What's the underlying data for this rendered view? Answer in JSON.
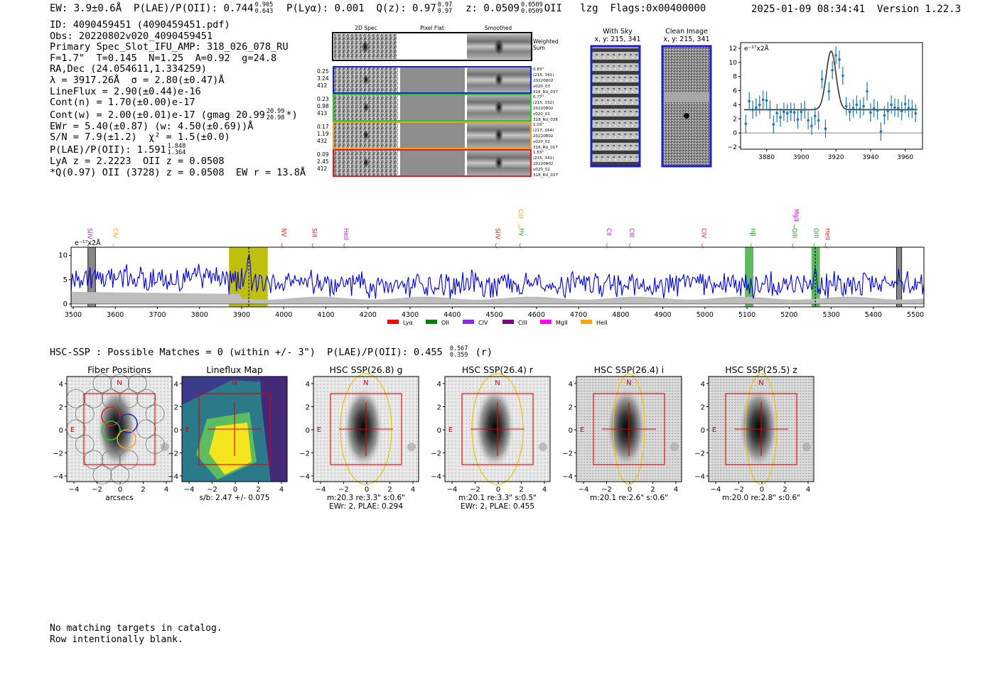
{
  "header": {
    "ew": "EW: 3.9±0.6Å",
    "plae_label": "P(LAE)/P(OII): 0.744",
    "plae_hi": "0.905",
    "plae_lo": "0.643",
    "plya": "P(Lyα): 0.001",
    "q_label": "Q(z): 0.97",
    "q_hi": "0.97",
    "q_lo": "0.97",
    "z_label": "z: 0.0509",
    "z_hi": "0.0509",
    "z_lo": "0.0509",
    "z_line": "OII",
    "algo": "lzg",
    "flags": "Flags:0x00400000",
    "datetime": "2025-01-09 08:34:41",
    "version": "Version 1.22.3"
  },
  "info": {
    "id": "ID: 4090459451 (4090459451.pdf)",
    "obs": "Obs: 20220802v020_4090459451",
    "primary": "Primary Spec_Slot_IFU_AMP: 318_026_078_RU",
    "fwhm": "F=1.7\"  T=0.145  N=1.25  A=0.92  g=24.8",
    "radec": "RA,Dec (24.054611,1.334259)",
    "lambda": "λ = 3917.26Å  σ = 2.80(±0.47)Å",
    "lineflux": "LineFlux = 2.90(±0.44)e-16",
    "contn": "Cont(n) = 1.70(±0.00)e-17",
    "contw": "Cont(w) = 2.00(±0.01)e-17 (gmag 20.99",
    "contw_hi": "20.99",
    "contw_lo": "20.98",
    "contw_end": "*)",
    "ewr": "EWr = 5.40(±0.87) (w: 4.50(±0.69))Å",
    "sn": "S/N = 7.9(±1.2)  χ² = 1.5(±0.0)",
    "plae2": "P(LAE)/P(OII): 1.591",
    "plae2_hi": "1.848",
    "plae2_lo": "1.364",
    "lya": "LyA z = 2.2223  OII z = 0.0508",
    "qline": "*Q(0.97) OII (3728) z = 0.0508  EW r = 13.8Å"
  },
  "cutouts": {
    "col_2d": "2D Spec",
    "col_flat": "Pixel Flat",
    "col_smooth": "Smoothed",
    "weighted": [
      "Weighted",
      "Sum"
    ],
    "rows": [
      {
        "color": "#1f1fd0",
        "left": [
          "0.25",
          "3.24",
          "412"
        ],
        "right": [
          "0.83\"",
          "(215, 341)",
          "20220802",
          "v020_03",
          "318_RU_037"
        ]
      },
      {
        "color": "#22cc22",
        "left": [
          "0.23",
          "0.98",
          "413"
        ],
        "right": [
          "0.77\"",
          "(215, 332)",
          "20220802",
          "v020_01",
          "318_RU_036"
        ]
      },
      {
        "color": "#f0a020",
        "left": [
          "0.17",
          "1.19",
          "432"
        ],
        "right": [
          "1.03\"",
          "(217, 164)",
          "20220802",
          "v020_02",
          "318_RU_017"
        ]
      },
      {
        "color": "#e02020",
        "left": [
          "0.09",
          "2.45",
          "412"
        ],
        "right": [
          "1.53\"",
          "(215, 341)",
          "20220802",
          "v020_02",
          "318_RU_037"
        ]
      }
    ],
    "with_sky": [
      "With Sky",
      "x, y: 215, 341"
    ],
    "clean": [
      "Clean Image",
      "x, y: 215, 341"
    ]
  },
  "zoom_chart": {
    "type": "scatter",
    "unit": "e⁻¹⁷x2Å",
    "xlim": [
      3865,
      3970
    ],
    "ylim": [
      -2.3,
      12.8
    ],
    "xticks": [
      3880,
      3900,
      3920,
      3940,
      3960
    ],
    "yticks": [
      -2,
      0,
      2,
      4,
      6,
      8,
      10,
      12
    ],
    "x": [
      3868,
      3870,
      3872,
      3874,
      3876,
      3878,
      3880,
      3882,
      3884,
      3886,
      3888,
      3890,
      3892,
      3894,
      3896,
      3898,
      3900,
      3902,
      3904,
      3906,
      3908,
      3910,
      3912,
      3914,
      3916,
      3918,
      3920,
      3922,
      3924,
      3926,
      3928,
      3930,
      3932,
      3934,
      3936,
      3938,
      3940,
      3942,
      3944,
      3946,
      3948,
      3950,
      3952,
      3954,
      3956,
      3958,
      3960,
      3962,
      3964,
      3966
    ],
    "y": [
      1.3,
      4.5,
      3.3,
      3.6,
      4.0,
      4.7,
      4.6,
      3.3,
      1.2,
      2.8,
      2.2,
      3.0,
      2.8,
      3.0,
      2.9,
      1.9,
      3.0,
      3.3,
      1.8,
      1.0,
      2.4,
      1.8,
      7.6,
      0.6,
      5.9,
      8.9,
      11.0,
      10.4,
      8.1,
      3.8,
      3.0,
      3.5,
      4.0,
      3.4,
      3.8,
      5.9,
      2.9,
      3.5,
      3.2,
      0.2,
      2.5,
      3.1,
      4.0,
      3.6,
      3.5,
      3.1,
      4.1,
      3.5,
      3.4,
      2.8
    ],
    "fit": {
      "continuum": 3.3,
      "amplitude": 8.3,
      "center": 3917.26,
      "sigma": 2.8
    }
  },
  "spectrum_chart": {
    "type": "line",
    "unit": "e⁻¹⁷x2Å",
    "xlim": [
      3495,
      5520
    ],
    "ylim": [
      -0.6,
      11.7
    ],
    "xticks": [
      3500,
      3600,
      3700,
      3800,
      3900,
      4000,
      4100,
      4200,
      4300,
      4400,
      4500,
      4600,
      4700,
      4800,
      4900,
      5000,
      5100,
      5200,
      5300,
      5400,
      5500
    ],
    "yticks": [
      0,
      5,
      10
    ],
    "highlight_bands": [
      {
        "x0": 3870,
        "x1": 3962,
        "color": "#bcbc00"
      },
      {
        "x0": 5095,
        "x1": 5115,
        "color": "#38a838"
      },
      {
        "x0": 5253,
        "x1": 5273,
        "color": "#38a838"
      }
    ],
    "masked_bands": [
      [
        3535,
        3553
      ],
      [
        5455,
        5467
      ]
    ],
    "dashed_lines": [
      3917,
      5262
    ],
    "line_labels": [
      {
        "label": "SiIV",
        "x": 3535,
        "color": "#9a30d0"
      },
      {
        "label": "CIV",
        "x": 3595,
        "color": "#f0a020"
      },
      {
        "label": "NV",
        "x": 3995,
        "color": "#e02020"
      },
      {
        "label": "SiII",
        "x": 4068,
        "color": "#e02020"
      },
      {
        "label": "HeII",
        "x": 4143,
        "color": "#9a30d0"
      },
      {
        "label": "SiIV",
        "x": 4503,
        "color": "#e02020"
      },
      {
        "label": "CIII",
        "x": 4558,
        "color": "#f0a020"
      },
      {
        "label": "Hγ",
        "x": 4560,
        "color": "#2a9a2a"
      },
      {
        "label": "CII",
        "x": 4767,
        "color": "#9a30d0"
      },
      {
        "label": "CIII",
        "x": 4821,
        "color": "#9a30d0"
      },
      {
        "label": "MgII",
        "x": 5212,
        "color": "#ff00ff"
      },
      {
        "label": "CIV",
        "x": 4993,
        "color": "#e02020"
      },
      {
        "label": "Hβ",
        "x": 5109,
        "color": "#2a9a2a"
      },
      {
        "label": "OIII",
        "x": 5208,
        "color": "#2a9a2a"
      },
      {
        "label": "OIII",
        "x": 5259,
        "color": "#2a9a2a"
      },
      {
        "label": "HeII",
        "x": 5286,
        "color": "#e02020"
      }
    ],
    "legend": [
      {
        "label": "Lyα",
        "color": "#ff0000"
      },
      {
        "label": "OII",
        "color": "#008000"
      },
      {
        "label": "CIV",
        "color": "#8a2be2"
      },
      {
        "label": "CIII",
        "color": "#800080"
      },
      {
        "label": "MgII",
        "color": "#ff00ff"
      },
      {
        "label": "HeII",
        "color": "#ffa500"
      }
    ]
  },
  "hsc": {
    "title": "HSC-SSP : Possible Matches = 0 (within +/- 3\")  P(LAE)/P(OII): 0.455",
    "hi": "0.567",
    "lo": "0.359",
    "band": "(r)",
    "panels": [
      {
        "title": "Fiber Positions",
        "caption": [
          "arcsecs"
        ]
      },
      {
        "title": "Lineflux Map",
        "caption": [
          "s/b: 2.47 +/- 0.075"
        ]
      },
      {
        "title": "HSC SSP(26.8) g",
        "caption": [
          "m:20.3  re:3.3\"  s:0.6\"",
          "EWr: 2, PLAE: 0.294"
        ]
      },
      {
        "title": "HSC SSP(26.4) r",
        "caption": [
          "m:20.1  re:3.3\"  s:0.5\"",
          "EWr: 2, PLAE: 0.455"
        ]
      },
      {
        "title": "HSC SSP(26.4) i",
        "caption": [
          "m:20.1  re:2.6\"  s:0.6\""
        ]
      },
      {
        "title": "HSC SSP(25.5) z",
        "caption": [
          "m:20.0  re:2.8\"  s:0.6\""
        ]
      }
    ],
    "axis_ticks": [
      "4",
      "2",
      "0",
      "−2",
      "−4"
    ],
    "x_ticks": [
      "−4",
      "−2",
      "0",
      "2",
      "4"
    ],
    "north": "N",
    "east": "E"
  },
  "footer": {
    "line1": "No matching targets in catalog.",
    "line2": "Row intentionally blank."
  }
}
